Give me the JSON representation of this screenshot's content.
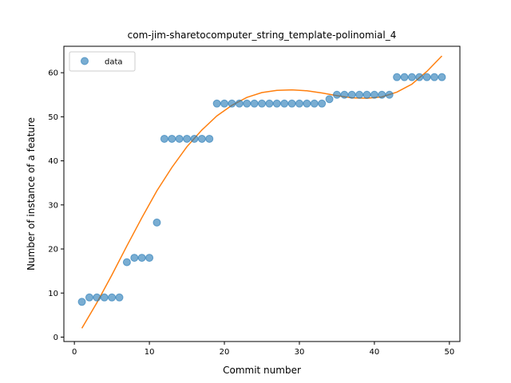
{
  "chart_data": {
    "type": "scatter",
    "title": "com-jim-sharetocomputer_string_template-polinomial_4",
    "xlabel": "Commit number",
    "ylabel": "Number of instance of a feature",
    "xlim": [
      -1.4,
      51.4
    ],
    "ylim": [
      -1.0,
      66.0
    ],
    "xticks": [
      0,
      10,
      20,
      30,
      40,
      50
    ],
    "yticks": [
      0,
      10,
      20,
      30,
      40,
      50,
      60
    ],
    "grid": false,
    "legend": {
      "position": "top-left",
      "entries": [
        "data"
      ]
    },
    "series": [
      {
        "name": "data",
        "kind": "scatter",
        "color": "#1f77b4",
        "x": [
          1,
          2,
          3,
          4,
          5,
          6,
          7,
          8,
          9,
          10,
          11,
          12,
          13,
          14,
          15,
          16,
          17,
          18,
          19,
          20,
          21,
          22,
          23,
          24,
          25,
          26,
          27,
          28,
          29,
          30,
          31,
          32,
          33,
          34,
          35,
          36,
          37,
          38,
          39,
          40,
          41,
          42,
          43,
          44,
          45,
          46,
          47,
          48,
          49
        ],
        "y": [
          8,
          9,
          9,
          9,
          9,
          9,
          17,
          18,
          18,
          18,
          26,
          45,
          45,
          45,
          45,
          45,
          45,
          45,
          53,
          53,
          53,
          53,
          53,
          53,
          53,
          53,
          53,
          53,
          53,
          53,
          53,
          53,
          53,
          54,
          55,
          55,
          55,
          55,
          55,
          55,
          55,
          55,
          59,
          59,
          59,
          59,
          59,
          59,
          59
        ]
      },
      {
        "kind": "fit-line",
        "color": "#ff7f0e",
        "x": [
          1,
          3,
          5,
          7,
          9,
          11,
          13,
          15,
          17,
          19,
          21,
          23,
          25,
          27,
          29,
          31,
          33,
          35,
          37,
          39,
          41,
          43,
          45,
          47,
          49
        ],
        "y": [
          2.0,
          7.8,
          14.1,
          20.7,
          27.1,
          33.2,
          38.5,
          43.2,
          47.0,
          50.2,
          52.6,
          54.4,
          55.5,
          56.0,
          56.1,
          55.9,
          55.4,
          54.8,
          54.3,
          54.2,
          54.5,
          55.6,
          57.4,
          60.3,
          63.8
        ]
      }
    ]
  }
}
